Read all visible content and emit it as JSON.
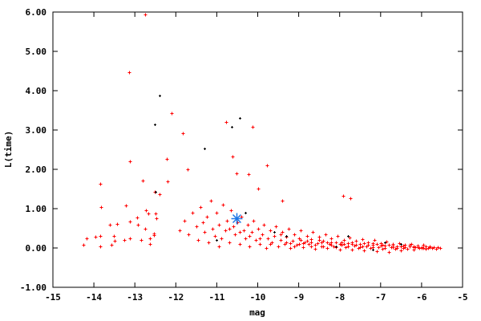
{
  "chart_data": {
    "type": "scatter",
    "title": "",
    "xlabel": "mag",
    "ylabel": "L(time)",
    "xlim": [
      -15,
      -5
    ],
    "ylim": [
      -1,
      6
    ],
    "x_ticks": [
      "-15",
      "-14",
      "-13",
      "-12",
      "-11",
      "-10",
      "-9",
      "-8",
      "-7",
      "-6",
      "-5"
    ],
    "y_ticks": [
      "-1.00",
      "0.00",
      "1.00",
      "2.00",
      "3.00",
      "4.00",
      "5.00",
      "6.00"
    ],
    "grid": false,
    "legend": "none",
    "series": [
      {
        "color": "#ff0000",
        "marker": "plus",
        "points": [
          [
            -12.75,
            5.94
          ],
          [
            -13.14,
            4.47
          ],
          [
            -12.1,
            3.43
          ],
          [
            -11.83,
            2.92
          ],
          [
            -13.12,
            2.2
          ],
          [
            -13.85,
            1.63
          ],
          [
            -13.83,
            1.04
          ],
          [
            -12.81,
            1.71
          ],
          [
            -12.51,
            1.43
          ],
          [
            -10.77,
            3.2
          ],
          [
            -10.13,
            3.08
          ],
          [
            -10.62,
            2.33
          ],
          [
            -11.71,
            2.0
          ],
          [
            -12.2,
            1.69
          ],
          [
            -12.22,
            2.27
          ],
          [
            -10.52,
            1.9
          ],
          [
            -10.23,
            1.88
          ],
          [
            -9.78,
            2.1
          ],
          [
            -10.0,
            1.51
          ],
          [
            -7.92,
            1.33
          ],
          [
            -7.74,
            1.27
          ],
          [
            -9.4,
            1.2
          ],
          [
            -14.26,
            0.08
          ],
          [
            -14.18,
            0.24
          ],
          [
            -13.96,
            0.29
          ],
          [
            -13.84,
            0.31
          ],
          [
            -13.84,
            0.04
          ],
          [
            -13.61,
            0.59
          ],
          [
            -13.43,
            0.61
          ],
          [
            -13.57,
            0.08
          ],
          [
            -13.51,
            0.31
          ],
          [
            -13.49,
            0.18
          ],
          [
            -13.26,
            0.2
          ],
          [
            -13.22,
            1.08
          ],
          [
            -13.12,
            0.67
          ],
          [
            -13.12,
            0.24
          ],
          [
            -12.94,
            0.78
          ],
          [
            -12.92,
            0.59
          ],
          [
            -12.85,
            0.2
          ],
          [
            -12.75,
            0.49
          ],
          [
            -12.63,
            0.24
          ],
          [
            -12.63,
            0.1
          ],
          [
            -12.53,
            0.37
          ],
          [
            -12.53,
            0.33
          ],
          [
            -12.73,
            0.96
          ],
          [
            -12.67,
            0.88
          ],
          [
            -12.49,
            0.88
          ],
          [
            -12.47,
            0.76
          ],
          [
            -12.39,
            1.37
          ],
          [
            -11.9,
            0.45
          ],
          [
            -11.8,
            0.7
          ],
          [
            -11.7,
            0.35
          ],
          [
            -11.6,
            0.9
          ],
          [
            -11.5,
            0.55
          ],
          [
            -11.45,
            0.2
          ],
          [
            -11.4,
            1.05
          ],
          [
            -11.35,
            0.65
          ],
          [
            -11.3,
            0.4
          ],
          [
            -11.25,
            0.8
          ],
          [
            -11.2,
            0.15
          ],
          [
            -11.15,
            1.2
          ],
          [
            -11.1,
            0.5
          ],
          [
            -11.05,
            0.3
          ],
          [
            -11.0,
            0.9
          ],
          [
            -10.95,
            0.6
          ],
          [
            -10.9,
            0.25
          ],
          [
            -10.85,
            1.1
          ],
          [
            -10.8,
            0.45
          ],
          [
            -10.75,
            0.7
          ],
          [
            -10.7,
            0.15
          ],
          [
            -10.65,
            0.95
          ],
          [
            -10.6,
            0.55
          ],
          [
            -10.55,
            0.35
          ],
          [
            -10.5,
            0.65
          ],
          [
            -10.45,
            0.1
          ],
          [
            -10.4,
            0.8
          ],
          [
            -10.35,
            0.45
          ],
          [
            -10.3,
            0.25
          ],
          [
            -10.25,
            0.6
          ],
          [
            -10.2,
            0.05
          ],
          [
            -10.15,
            0.4
          ],
          [
            -10.1,
            0.7
          ],
          [
            -10.05,
            0.2
          ],
          [
            -10.0,
            0.5
          ],
          [
            -9.95,
            0.1
          ],
          [
            -9.9,
            0.35
          ],
          [
            -9.85,
            0.6
          ],
          [
            -9.8,
            0.0
          ],
          [
            -9.75,
            0.25
          ],
          [
            -9.7,
            0.45
          ],
          [
            -9.65,
            0.15
          ],
          [
            -9.6,
            0.3
          ],
          [
            -9.55,
            0.55
          ],
          [
            -9.5,
            0.05
          ],
          [
            -9.45,
            0.2
          ],
          [
            -9.4,
            0.4
          ],
          [
            -9.35,
            0.1
          ],
          [
            -9.3,
            0.28
          ],
          [
            -9.25,
            0.5
          ],
          [
            -9.2,
            0.0
          ],
          [
            -9.15,
            0.18
          ],
          [
            -9.1,
            0.35
          ],
          [
            -9.05,
            0.08
          ],
          [
            -9.0,
            0.25
          ],
          [
            -8.95,
            0.45
          ],
          [
            -8.9,
            0.02
          ],
          [
            -8.85,
            0.15
          ],
          [
            -8.8,
            0.3
          ],
          [
            -8.75,
            0.1
          ],
          [
            -8.7,
            0.22
          ],
          [
            -8.65,
            0.4
          ],
          [
            -8.6,
            -0.02
          ],
          [
            -8.55,
            0.12
          ],
          [
            -8.5,
            0.28
          ],
          [
            -8.45,
            0.05
          ],
          [
            -8.4,
            0.18
          ],
          [
            -8.35,
            0.35
          ],
          [
            -8.3,
            0.0
          ],
          [
            -8.25,
            0.1
          ],
          [
            -8.2,
            0.25
          ],
          [
            -8.15,
            0.05
          ],
          [
            -8.1,
            0.15
          ],
          [
            -8.05,
            0.3
          ],
          [
            -8.0,
            -0.05
          ],
          [
            -7.95,
            0.08
          ],
          [
            -7.9,
            0.2
          ],
          [
            -7.85,
            0.02
          ],
          [
            -7.8,
            0.12
          ],
          [
            -7.75,
            0.26
          ],
          [
            -7.7,
            -0.04
          ],
          [
            -7.65,
            0.06
          ],
          [
            -7.6,
            0.18
          ],
          [
            -7.55,
            0.0
          ],
          [
            -7.5,
            0.1
          ],
          [
            -7.45,
            0.22
          ],
          [
            -7.4,
            -0.06
          ],
          [
            -7.35,
            0.04
          ],
          [
            -7.3,
            0.15
          ],
          [
            -7.25,
            0.0
          ],
          [
            -7.2,
            0.08
          ],
          [
            -7.15,
            0.2
          ],
          [
            -7.1,
            -0.08
          ],
          [
            -7.05,
            0.03
          ],
          [
            -7.0,
            0.12
          ],
          [
            -6.95,
            -0.02
          ],
          [
            -6.9,
            0.06
          ],
          [
            -6.85,
            0.16
          ],
          [
            -6.8,
            -0.1
          ],
          [
            -6.75,
            0.02
          ],
          [
            -6.7,
            0.1
          ],
          [
            -6.65,
            -0.03
          ],
          [
            -6.6,
            0.05
          ],
          [
            -6.55,
            0.13
          ],
          [
            -6.5,
            -0.06
          ],
          [
            -6.45,
            0.01
          ],
          [
            -6.4,
            0.08
          ],
          [
            -6.35,
            -0.02
          ],
          [
            -6.3,
            0.04
          ],
          [
            -6.25,
            0.1
          ],
          [
            -6.2,
            -0.04
          ],
          [
            -6.15,
            0.02
          ],
          [
            -6.1,
            0.07
          ],
          [
            -6.05,
            -0.01
          ],
          [
            -6.0,
            0.03
          ],
          [
            -5.95,
            0.08
          ],
          [
            -5.9,
            -0.03
          ],
          [
            -5.85,
            0.01
          ],
          [
            -5.8,
            0.05
          ],
          [
            -5.75,
            0.0
          ],
          [
            -5.7,
            0.03
          ],
          [
            -5.65,
            -0.02
          ],
          [
            -5.6,
            0.02
          ],
          [
            -5.55,
            0.0
          ],
          [
            -10.95,
            0.05
          ],
          [
            -10.7,
            0.5
          ],
          [
            -10.45,
            0.4
          ],
          [
            -10.2,
            0.3
          ],
          [
            -9.95,
            0.25
          ],
          [
            -9.7,
            0.1
          ],
          [
            -9.45,
            0.35
          ],
          [
            -9.2,
            0.12
          ],
          [
            -8.95,
            0.2
          ],
          [
            -8.7,
            0.05
          ],
          [
            -8.45,
            0.15
          ],
          [
            -8.2,
            0.08
          ],
          [
            -7.95,
            0.15
          ],
          [
            -7.7,
            0.1
          ],
          [
            -7.45,
            0.05
          ],
          [
            -7.2,
            0.12
          ],
          [
            -6.95,
            0.08
          ],
          [
            -6.7,
            0.03
          ],
          [
            -6.45,
            0.06
          ],
          [
            -6.2,
            0.02
          ],
          [
            -5.95,
            0.0
          ],
          [
            -9.0,
            0.1
          ],
          [
            -8.8,
            0.18
          ],
          [
            -8.6,
            0.08
          ],
          [
            -8.4,
            0.05
          ],
          [
            -8.2,
            0.14
          ],
          [
            -8.0,
            0.1
          ],
          [
            -7.8,
            0.05
          ],
          [
            -7.6,
            0.08
          ],
          [
            -7.4,
            0.12
          ],
          [
            -7.2,
            0.02
          ],
          [
            -7.0,
            0.06
          ],
          [
            -6.8,
            0.09
          ],
          [
            -6.6,
            0.0
          ],
          [
            -6.4,
            0.03
          ],
          [
            -6.2,
            0.05
          ],
          [
            -6.0,
            0.01
          ],
          [
            -5.8,
            0.02
          ],
          [
            -9.3,
            0.15
          ],
          [
            -9.1,
            0.05
          ],
          [
            -8.9,
            0.12
          ],
          [
            -8.7,
            0.15
          ],
          [
            -8.5,
            0.2
          ],
          [
            -8.3,
            0.15
          ],
          [
            -8.1,
            0.02
          ],
          [
            -7.9,
            0.1
          ],
          [
            -7.7,
            0.15
          ],
          [
            -7.5,
            0.02
          ],
          [
            -7.3,
            0.08
          ],
          [
            -7.1,
            0.1
          ],
          [
            -6.9,
            0.0
          ],
          [
            -6.7,
            0.06
          ],
          [
            -6.5,
            0.04
          ],
          [
            -6.3,
            0.08
          ],
          [
            -6.1,
            0.03
          ],
          [
            -5.9,
            0.05
          ]
        ]
      },
      {
        "color": "#000000",
        "marker": "plus-small",
        "points": [
          [
            -12.4,
            3.88
          ],
          [
            -10.64,
            3.08
          ],
          [
            -10.44,
            3.31
          ],
          [
            -11.3,
            2.53
          ],
          [
            -12.51,
            3.14
          ],
          [
            -12.5,
            1.43
          ],
          [
            -10.3,
            0.9
          ],
          [
            -9.3,
            0.3
          ],
          [
            -8.1,
            0.05
          ],
          [
            -7.2,
            -0.05
          ],
          [
            -6.9,
            0.15
          ],
          [
            -6.5,
            0.1
          ],
          [
            -7.8,
            0.3
          ],
          [
            -11.0,
            0.2
          ],
          [
            -9.6,
            0.4
          ]
        ]
      },
      {
        "color": "#1e78e6",
        "marker": "star",
        "points": [
          [
            -10.52,
            0.75
          ]
        ]
      }
    ]
  }
}
